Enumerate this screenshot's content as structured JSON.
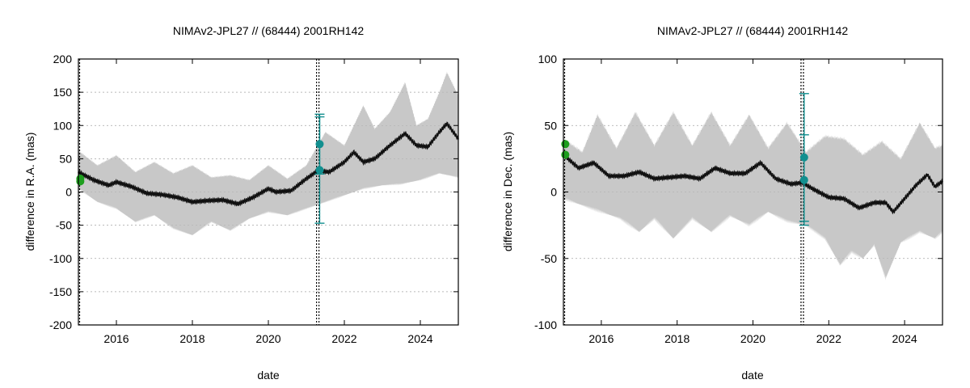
{
  "chart_data": [
    {
      "type": "line",
      "title": "NIMAv2-JPL27 // (68444) 2001RH142",
      "xlabel": "date",
      "ylabel": "difference in R.A. (mas)",
      "xlim": [
        2015.0,
        2025.0
      ],
      "ylim": [
        -200,
        200
      ],
      "xticks": [
        2016,
        2018,
        2020,
        2022,
        2024
      ],
      "yticks": [
        -200,
        -150,
        -100,
        -50,
        0,
        50,
        100,
        150,
        200
      ],
      "grid": "horizontal dotted",
      "vertical_marker_x": 2021.3,
      "series": [
        {
          "name": "mean difference",
          "x": [
            2015.0,
            2015.4,
            2015.8,
            2016.0,
            2016.4,
            2016.8,
            2017.2,
            2017.6,
            2018.0,
            2018.4,
            2018.8,
            2019.2,
            2019.6,
            2020.0,
            2020.2,
            2020.6,
            2021.0,
            2021.3,
            2021.6,
            2022.0,
            2022.25,
            2022.5,
            2022.8,
            2023.2,
            2023.6,
            2023.9,
            2024.2,
            2024.5,
            2024.7,
            2025.0
          ],
          "y": [
            30,
            18,
            10,
            15,
            8,
            -2,
            -4,
            -8,
            -15,
            -13,
            -12,
            -18,
            -8,
            5,
            0,
            2,
            20,
            32,
            30,
            45,
            60,
            45,
            50,
            70,
            88,
            70,
            68,
            90,
            103,
            80
          ]
        },
        {
          "name": "uncertainty upper",
          "x": [
            2015.0,
            2015.5,
            2016.0,
            2016.5,
            2017.0,
            2017.5,
            2018.0,
            2018.5,
            2019.0,
            2019.5,
            2020.0,
            2020.5,
            2021.0,
            2021.5,
            2022.0,
            2022.5,
            2022.8,
            2023.2,
            2023.6,
            2023.9,
            2024.2,
            2024.5,
            2024.7,
            2025.0
          ],
          "y": [
            62,
            40,
            55,
            30,
            45,
            28,
            40,
            22,
            25,
            18,
            40,
            20,
            40,
            90,
            70,
            130,
            95,
            120,
            165,
            100,
            110,
            150,
            180,
            145
          ]
        },
        {
          "name": "uncertainty lower",
          "x": [
            2015.0,
            2015.5,
            2016.0,
            2016.5,
            2017.0,
            2017.5,
            2018.0,
            2018.5,
            2019.0,
            2019.5,
            2020.0,
            2020.5,
            2021.0,
            2021.5,
            2022.0,
            2022.5,
            2023.0,
            2023.5,
            2024.0,
            2024.5,
            2025.0
          ],
          "y": [
            5,
            -15,
            -25,
            -45,
            -35,
            -55,
            -65,
            -45,
            -58,
            -40,
            -30,
            -35,
            -25,
            -15,
            -5,
            5,
            10,
            12,
            18,
            28,
            22
          ]
        }
      ],
      "observations": [
        {
          "date": 2015.05,
          "value": 16,
          "error": 0,
          "color": "#1e9e1e"
        },
        {
          "date": 2015.05,
          "value": 20,
          "error": 0,
          "color": "#1e9e1e"
        },
        {
          "date": 2021.35,
          "value": 72,
          "error": 45,
          "color": "#128f8f"
        },
        {
          "date": 2021.35,
          "value": 33,
          "error": 80,
          "color": "#128f8f"
        }
      ]
    },
    {
      "type": "line",
      "title": "NIMAv2-JPL27 // (68444) 2001RH142",
      "xlabel": "date",
      "ylabel": "difference in Dec. (mas)",
      "xlim": [
        2015.0,
        2025.0
      ],
      "ylim": [
        -100,
        100
      ],
      "xticks": [
        2016,
        2018,
        2020,
        2022,
        2024
      ],
      "yticks": [
        -100,
        -50,
        0,
        50,
        100
      ],
      "grid": "horizontal dotted",
      "vertical_marker_x": 2021.3,
      "series": [
        {
          "name": "mean difference",
          "x": [
            2015.0,
            2015.4,
            2015.8,
            2016.2,
            2016.6,
            2017.0,
            2017.4,
            2017.8,
            2018.2,
            2018.6,
            2019.0,
            2019.4,
            2019.8,
            2020.2,
            2020.6,
            2021.0,
            2021.3,
            2021.6,
            2022.0,
            2022.4,
            2022.8,
            2023.2,
            2023.5,
            2023.7,
            2024.0,
            2024.3,
            2024.6,
            2024.8,
            2025.0
          ],
          "y": [
            28,
            18,
            22,
            12,
            12,
            15,
            10,
            11,
            12,
            10,
            18,
            14,
            14,
            22,
            10,
            6,
            7,
            2,
            -4,
            -5,
            -12,
            -8,
            -8,
            -15,
            -5,
            5,
            13,
            4,
            8
          ]
        },
        {
          "name": "uncertainty upper",
          "x": [
            2015.0,
            2015.5,
            2015.9,
            2016.4,
            2016.9,
            2017.4,
            2017.9,
            2018.4,
            2018.9,
            2019.4,
            2019.9,
            2020.4,
            2020.9,
            2021.4,
            2021.9,
            2022.4,
            2022.9,
            2023.4,
            2023.9,
            2024.4,
            2024.8,
            2025.0
          ],
          "y": [
            40,
            30,
            58,
            33,
            60,
            35,
            60,
            35,
            60,
            35,
            58,
            33,
            52,
            30,
            42,
            40,
            28,
            38,
            25,
            52,
            33,
            35
          ]
        },
        {
          "name": "uncertainty lower",
          "x": [
            2015.0,
            2015.5,
            2016.0,
            2016.5,
            2017.0,
            2017.4,
            2017.9,
            2018.4,
            2018.9,
            2019.4,
            2019.9,
            2020.4,
            2020.9,
            2021.4,
            2021.9,
            2022.3,
            2022.6,
            2022.9,
            2023.2,
            2023.5,
            2023.9,
            2024.4,
            2024.8,
            2025.0
          ],
          "y": [
            -5,
            -10,
            -15,
            -20,
            -30,
            -20,
            -35,
            -20,
            -30,
            -18,
            -25,
            -15,
            -22,
            -25,
            -35,
            -55,
            -45,
            -50,
            -40,
            -65,
            -38,
            -30,
            -35,
            -30
          ]
        }
      ],
      "observations": [
        {
          "date": 2015.05,
          "value": 28,
          "error": 0,
          "color": "#1e9e1e"
        },
        {
          "date": 2015.05,
          "value": 36,
          "error": 0,
          "color": "#1e9e1e"
        },
        {
          "date": 2021.35,
          "value": 26,
          "error": 48,
          "color": "#128f8f"
        },
        {
          "date": 2021.35,
          "value": 9,
          "error": 34,
          "color": "#128f8f"
        }
      ]
    }
  ]
}
